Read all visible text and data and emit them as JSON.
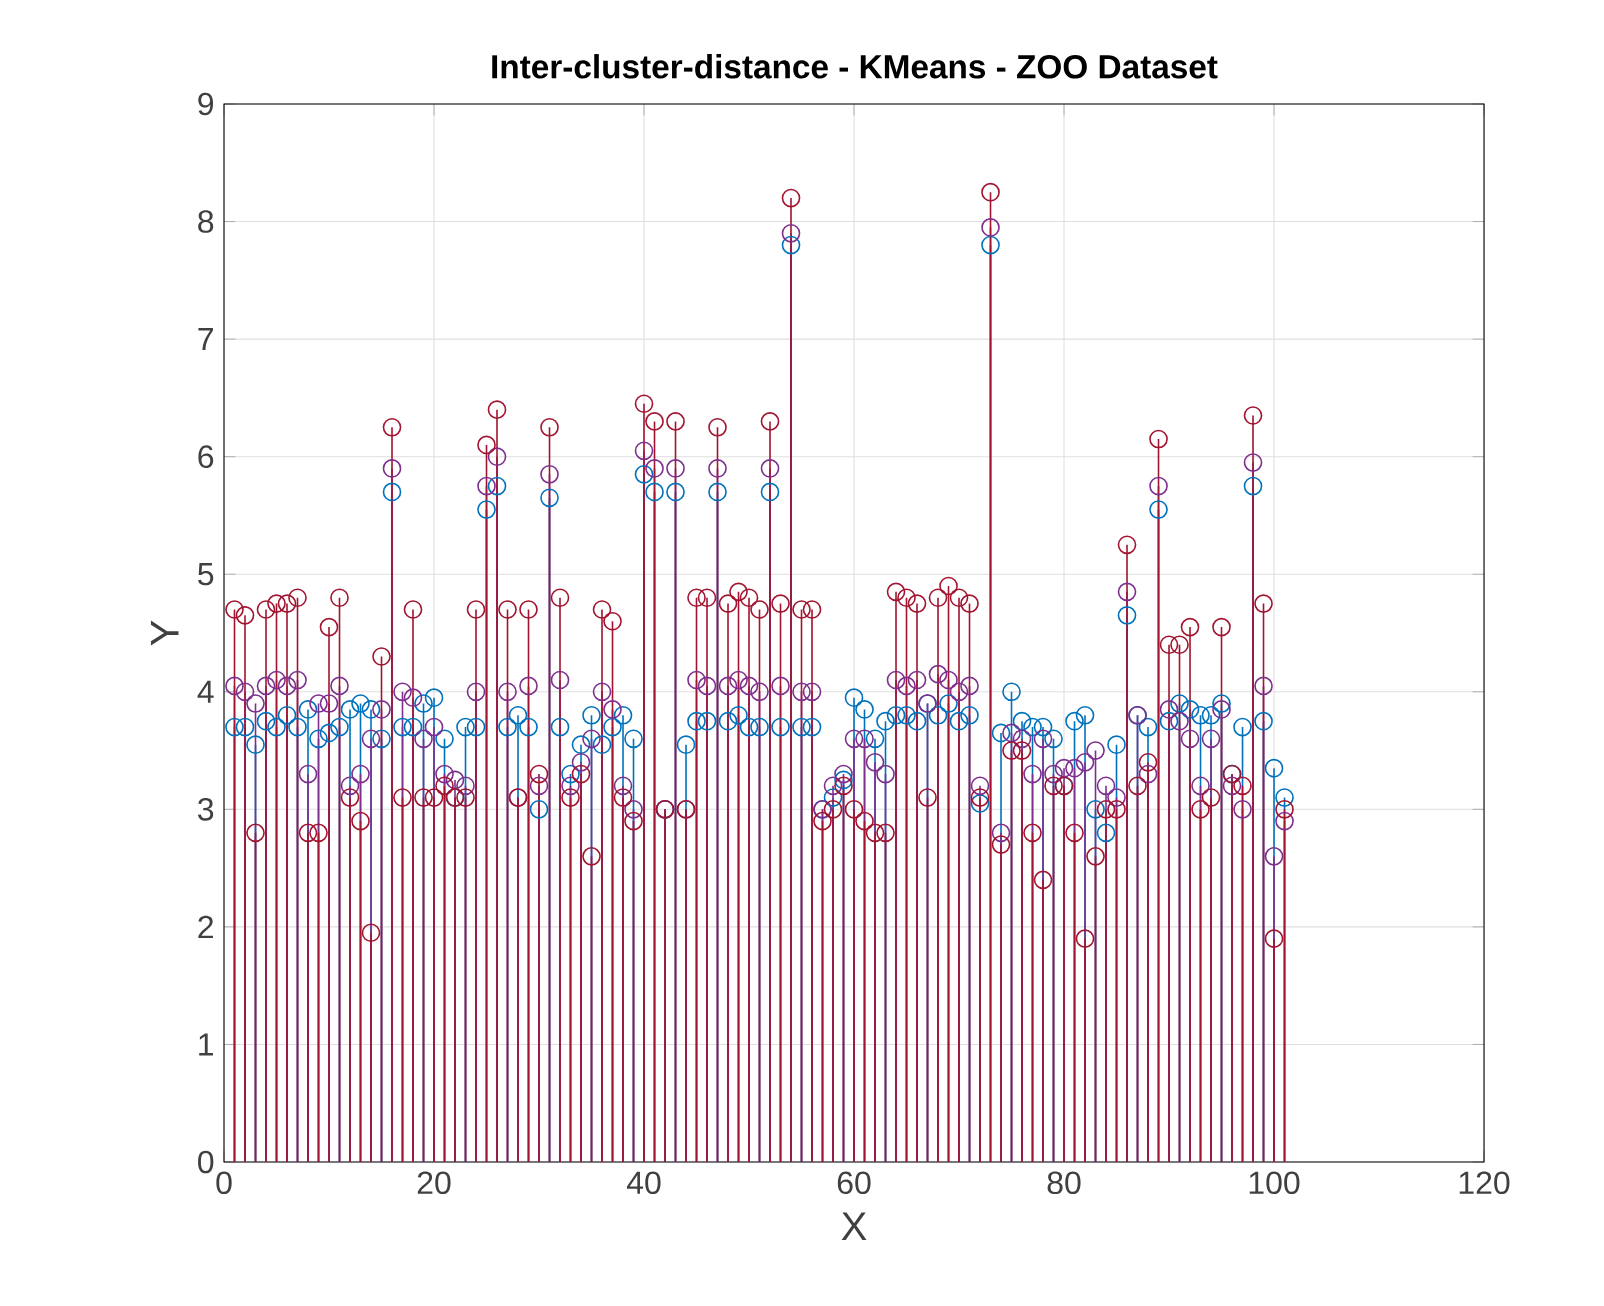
{
  "chart_data": {
    "type": "lollipop",
    "title": "Inter-cluster-distance - KMeans - ZOO Dataset",
    "xlabel": "X",
    "ylabel": "Y",
    "x": [
      1,
      2,
      3,
      4,
      5,
      6,
      7,
      8,
      9,
      10,
      11,
      12,
      13,
      14,
      15,
      16,
      17,
      18,
      19,
      20,
      21,
      22,
      23,
      24,
      25,
      26,
      27,
      28,
      29,
      30,
      31,
      32,
      33,
      34,
      35,
      36,
      37,
      38,
      39,
      40,
      41,
      42,
      43,
      44,
      45,
      46,
      47,
      48,
      49,
      50,
      51,
      52,
      53,
      54,
      55,
      56,
      57,
      58,
      59,
      60,
      61,
      62,
      63,
      64,
      65,
      66,
      67,
      68,
      69,
      70,
      71,
      72,
      73,
      74,
      75,
      76,
      77,
      78,
      79,
      80,
      81,
      82,
      83,
      84,
      85,
      86,
      87,
      88,
      89,
      90,
      91,
      92,
      93,
      94,
      95,
      96,
      97,
      98,
      99,
      100,
      101
    ],
    "xlim": [
      0,
      120
    ],
    "xticks": [
      0,
      20,
      40,
      60,
      80,
      100,
      120
    ],
    "ylim": [
      0,
      9
    ],
    "yticks": [
      0,
      1,
      2,
      3,
      4,
      5,
      6,
      7,
      8,
      9
    ],
    "grid": true,
    "marker": "circle",
    "series": [
      {
        "color": "#0072bd",
        "values": [
          3.7,
          3.7,
          3.55,
          3.75,
          3.7,
          3.8,
          3.7,
          3.85,
          3.6,
          3.65,
          3.7,
          3.85,
          3.9,
          3.85,
          3.6,
          5.7,
          3.7,
          3.7,
          3.9,
          3.95,
          3.6,
          3.1,
          3.7,
          3.7,
          5.55,
          5.75,
          3.7,
          3.8,
          3.7,
          3.0,
          5.65,
          3.7,
          3.3,
          3.55,
          3.8,
          3.55,
          3.7,
          3.8,
          3.6,
          5.85,
          5.7,
          3.0,
          5.7,
          3.55,
          3.75,
          3.75,
          5.7,
          3.75,
          3.8,
          3.7,
          3.7,
          5.7,
          3.7,
          7.8,
          3.7,
          3.7,
          3.0,
          3.1,
          3.25,
          3.95,
          3.85,
          3.6,
          3.75,
          3.8,
          3.8,
          3.75,
          3.9,
          3.8,
          3.9,
          3.75,
          3.8,
          3.05,
          7.8,
          3.65,
          4.0,
          3.75,
          3.7,
          3.7,
          3.6,
          3.2,
          3.75,
          3.8,
          3.0,
          2.8,
          3.55,
          4.65,
          3.8,
          3.7,
          5.55,
          3.75,
          3.9,
          3.85,
          3.8,
          3.8,
          3.9,
          3.3,
          3.7,
          5.75,
          3.75,
          3.35,
          3.1
        ]
      },
      {
        "color": "#7e2f8e",
        "values": [
          4.05,
          4.0,
          3.9,
          4.05,
          4.1,
          4.05,
          4.1,
          3.3,
          3.9,
          3.9,
          4.05,
          3.2,
          3.3,
          3.6,
          3.85,
          5.9,
          4.0,
          3.95,
          3.6,
          3.7,
          3.3,
          3.25,
          3.2,
          4.0,
          5.75,
          6.0,
          4.0,
          3.1,
          4.05,
          3.2,
          5.85,
          4.1,
          3.2,
          3.4,
          3.6,
          4.0,
          3.85,
          3.2,
          3.0,
          6.05,
          5.9,
          3.0,
          5.9,
          3.0,
          4.1,
          4.05,
          5.9,
          4.05,
          4.1,
          4.05,
          4.0,
          5.9,
          4.05,
          7.9,
          4.0,
          4.0,
          3.0,
          3.2,
          3.3,
          3.6,
          3.6,
          3.4,
          3.3,
          4.1,
          4.05,
          4.1,
          3.9,
          4.15,
          4.1,
          4.0,
          4.05,
          3.2,
          7.95,
          2.8,
          3.65,
          3.6,
          3.3,
          3.6,
          3.3,
          3.35,
          3.35,
          3.4,
          3.5,
          3.2,
          3.1,
          4.85,
          3.8,
          3.3,
          5.75,
          3.85,
          3.75,
          3.6,
          3.2,
          3.6,
          3.85,
          3.2,
          3.0,
          5.95,
          4.05,
          2.6,
          2.9
        ]
      },
      {
        "color": "#a2142f",
        "values": [
          4.7,
          4.65,
          2.8,
          4.7,
          4.75,
          4.75,
          4.8,
          2.8,
          2.8,
          4.55,
          4.8,
          3.1,
          2.9,
          1.95,
          4.3,
          6.25,
          3.1,
          4.7,
          3.1,
          3.1,
          3.2,
          3.1,
          3.1,
          4.7,
          6.1,
          6.4,
          4.7,
          3.1,
          4.7,
          3.3,
          6.25,
          4.8,
          3.1,
          3.3,
          2.6,
          4.7,
          4.6,
          3.1,
          2.9,
          6.45,
          6.3,
          3.0,
          6.3,
          3.0,
          4.8,
          4.8,
          6.25,
          4.75,
          4.85,
          4.8,
          4.7,
          6.3,
          4.75,
          8.2,
          4.7,
          4.7,
          2.9,
          3.0,
          3.2,
          3.0,
          2.9,
          2.8,
          2.8,
          4.85,
          4.8,
          4.75,
          3.1,
          4.8,
          4.9,
          4.8,
          4.75,
          3.1,
          8.25,
          2.7,
          3.5,
          3.5,
          2.8,
          2.4,
          3.2,
          3.2,
          2.8,
          1.9,
          2.6,
          3.0,
          3.0,
          5.25,
          3.2,
          3.4,
          6.15,
          4.4,
          4.4,
          4.55,
          3.0,
          3.1,
          4.55,
          3.3,
          3.2,
          6.35,
          4.75,
          1.9,
          3.0
        ]
      }
    ]
  }
}
